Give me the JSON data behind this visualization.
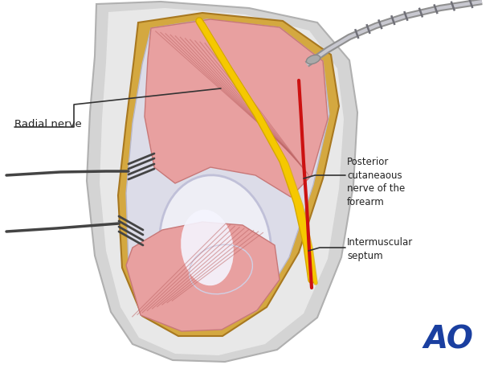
{
  "bg_color": "#ffffff",
  "ao_color": "#1a3fa0",
  "text_color": "#222222",
  "anno_line_color": "#333333",
  "outer_arm_color": "#cccccc",
  "fat_color": "#d4a840",
  "wound_inner_color": "#dcdce8",
  "muscle_light": "#e8a0a0",
  "muscle_dark": "#c87878",
  "muscle_fiber": "#c06868",
  "bone_color": "#eeeef5",
  "bone_edge": "#c0c0d8",
  "nerve_yellow": "#f5c800",
  "nerve_yellow_dark": "#d4a800",
  "nerve_red": "#cc1111",
  "tool_color": "#909090",
  "tool_highlight": "#c8c8d0",
  "retractor_color": "#444444",
  "label_radial": "Radial nerve",
  "label_posterior": "Posterior\ncutaneaous\nnerve of the\nforearm",
  "label_septum": "Intermuscular\nseptum",
  "font_size_label": 9.5,
  "font_size_anno": 8.5,
  "font_size_ao": 28
}
